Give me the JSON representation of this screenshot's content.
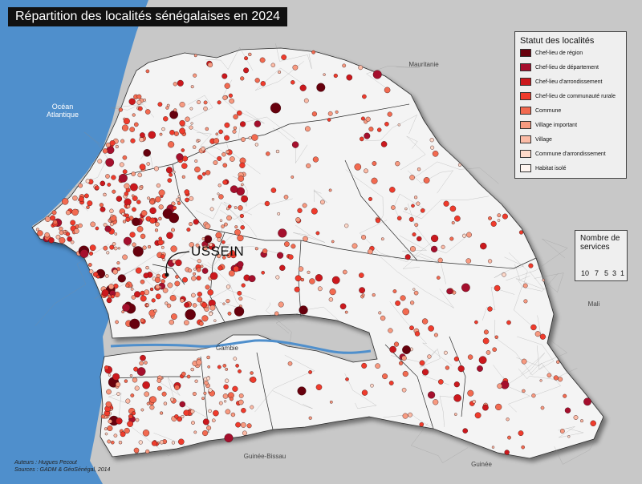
{
  "map": {
    "title": "Répartition des localités sénégalaises en 2024",
    "labels": {
      "ocean": "Océan\nAtlantique",
      "mauritanie": "Mauritanie",
      "mali": "Mali",
      "gambie": "Gambie",
      "guinee_bissau": "Guinée-Bissau",
      "guinee": "Guinée",
      "ussein": "USSEIN"
    },
    "credits": {
      "authors": "Auteurs : Hugues Pecout",
      "sources": "Sources : GADM & GéoSénégal, 2014"
    }
  },
  "legend_status": {
    "title": "Statut des localités",
    "items": [
      {
        "label": "Chef-lieu de région",
        "color": "#67000d"
      },
      {
        "label": "Chef-lieu de département",
        "color": "#a50f2d"
      },
      {
        "label": "Chef-lieu d'arrondissement",
        "color": "#cb181d"
      },
      {
        "label": "Chef-lieu de communauté rurale",
        "color": "#ef3b2c"
      },
      {
        "label": "Commune",
        "color": "#f26a50"
      },
      {
        "label": "Village important",
        "color": "#f79a80"
      },
      {
        "label": "Village",
        "color": "#fbbba6"
      },
      {
        "label": "Commune d'arrondissement",
        "color": "#fdd9c9"
      },
      {
        "label": "Habitat isolé",
        "color": "#fff5f0"
      }
    ]
  },
  "legend_size": {
    "title_line1": "Nombre de",
    "title_line2": "services",
    "values": [
      "10",
      "7",
      "5",
      "3",
      "1"
    ]
  },
  "colors": {
    "ocean": "#4f8fcc",
    "land": "#f4f4f4",
    "neighbors": "#c8c8c8",
    "border": "#2b2b2b"
  }
}
